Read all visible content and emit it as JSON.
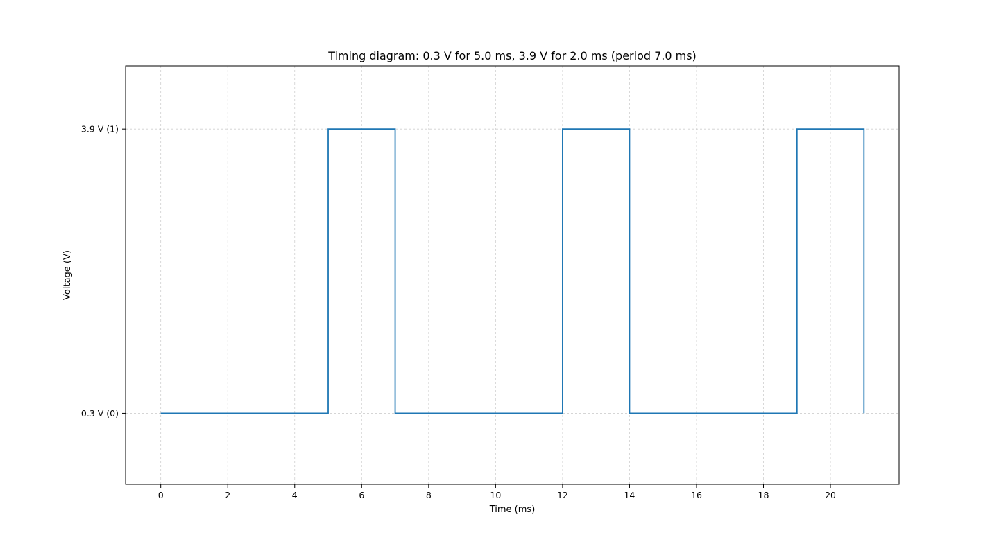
{
  "chart_data": {
    "type": "line",
    "title": "Timing diagram: 0.3 V for 5.0 ms, 3.9 V for 2.0 ms (period 7.0 ms)",
    "xlabel": "Time (ms)",
    "ylabel": "Voltage (V)",
    "xlim": [
      -1.05,
      22.05
    ],
    "ylim": [
      -0.6,
      4.7
    ],
    "x_ticks": [
      0,
      2,
      4,
      6,
      8,
      10,
      12,
      14,
      16,
      18,
      20
    ],
    "y_ticks": [
      {
        "value": 0.3,
        "label": "0.3 V (0)"
      },
      {
        "value": 3.9,
        "label": "3.9 V (1)"
      }
    ],
    "grid": true,
    "series": [
      {
        "color": "#1f77b4",
        "x": [
          0,
          5,
          5,
          7,
          7,
          12,
          12,
          14,
          14,
          19,
          19,
          21,
          21
        ],
        "y": [
          0.3,
          0.3,
          3.9,
          3.9,
          0.3,
          0.3,
          3.9,
          3.9,
          0.3,
          0.3,
          3.9,
          3.9,
          0.3
        ]
      }
    ]
  }
}
